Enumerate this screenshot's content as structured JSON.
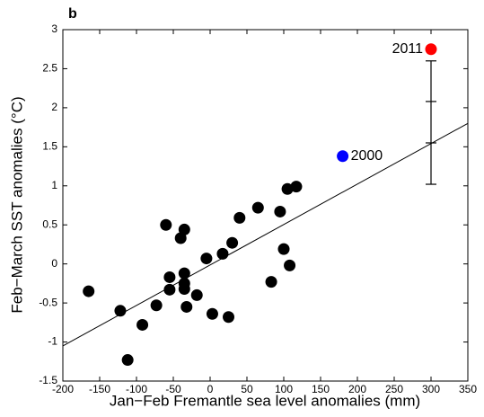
{
  "chart_data": {
    "type": "scatter",
    "panel_label": "b",
    "xlabel": "Jan−Feb Fremantle sea level anomalies (mm)",
    "ylabel": "Feb−March SST anomalies (°C)",
    "xlim": [
      -200,
      350
    ],
    "ylim": [
      -1.5,
      3
    ],
    "xticks": [
      -200,
      -150,
      -100,
      -50,
      0,
      50,
      100,
      150,
      200,
      250,
      300,
      350
    ],
    "yticks": [
      -1.5,
      -1,
      -0.5,
      0,
      0.5,
      1,
      1.5,
      2,
      2.5,
      3
    ],
    "series": [
      {
        "color": "#000000",
        "x": [
          -165,
          -122,
          -112,
          -92,
          -73,
          -60,
          -55,
          -55,
          -40,
          -35,
          -35,
          -35,
          -32,
          -35,
          -18,
          -5,
          3,
          17,
          25,
          30,
          40,
          65,
          83,
          95,
          100,
          105,
          108,
          117
        ],
        "values": [
          -0.35,
          -0.6,
          -1.23,
          -0.78,
          -0.53,
          0.5,
          -0.17,
          -0.33,
          0.33,
          0.44,
          -0.12,
          -0.25,
          -0.55,
          -0.32,
          -0.4,
          0.07,
          -0.64,
          0.13,
          -0.68,
          0.27,
          0.59,
          0.72,
          -0.23,
          0.67,
          0.19,
          0.96,
          -0.02,
          0.99
        ]
      },
      {
        "name": "2000",
        "color": "#0000ff",
        "x": [
          180
        ],
        "values": [
          1.38
        ]
      },
      {
        "name": "2011",
        "color": "#ff0000",
        "x": [
          300
        ],
        "values": [
          2.75
        ]
      }
    ],
    "error_bar": {
      "x": 300,
      "low": 1.02,
      "high": 2.6,
      "marks": [
        1.55,
        2.08
      ]
    },
    "fit_line": {
      "x": [
        -200,
        350
      ],
      "y": [
        -1.05,
        1.8
      ]
    }
  }
}
